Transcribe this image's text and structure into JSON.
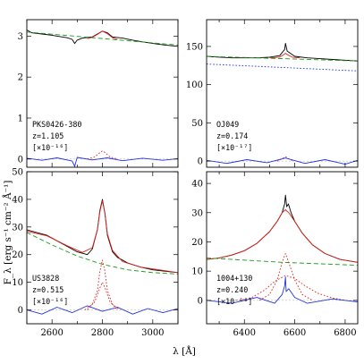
{
  "chart_data": [
    {
      "id": "pks0426",
      "type": "line",
      "object": "PKS0426-380",
      "redshift": "z=1.105",
      "scale": "[×10⁻¹⁶]",
      "xlim": [
        2500,
        3100
      ],
      "ylim": [
        -0.2,
        3.4
      ],
      "yticks": [
        0,
        1,
        2,
        3
      ],
      "ytick_labels": [
        "0",
        "1",
        "2",
        "3"
      ],
      "line_center": 2800,
      "series": [
        {
          "role": "observed",
          "color": "#000000",
          "style": "solid",
          "x": [
            2500,
            2520,
            2560,
            2600,
            2640,
            2660,
            2680,
            2690,
            2700,
            2720,
            2760,
            2780,
            2800,
            2820,
            2840,
            2880,
            2920,
            2960,
            3000,
            3050,
            3100
          ],
          "y": [
            3.15,
            3.08,
            3.05,
            3.02,
            2.98,
            2.96,
            2.92,
            2.82,
            2.9,
            2.95,
            2.98,
            3.05,
            3.12,
            3.08,
            2.98,
            2.95,
            2.9,
            2.86,
            2.82,
            2.78,
            2.75
          ]
        },
        {
          "role": "model",
          "color": "#e0201a",
          "style": "solid",
          "x": [
            2740,
            2760,
            2780,
            2800,
            2820,
            2840,
            2860
          ],
          "y": [
            2.94,
            2.97,
            3.04,
            3.12,
            3.06,
            2.96,
            2.92
          ]
        },
        {
          "role": "continuum",
          "color": "#1a9a1a",
          "style": "dashed",
          "x": [
            2500,
            3100
          ],
          "y": [
            3.1,
            2.78
          ]
        },
        {
          "role": "line-component",
          "color": "#e0201a",
          "style": "dotted",
          "x": [
            2740,
            2770,
            2790,
            2800,
            2810,
            2830,
            2860
          ],
          "y": [
            0,
            0.05,
            0.16,
            0.2,
            0.16,
            0.05,
            0
          ]
        },
        {
          "role": "residual",
          "color": "#2233dd",
          "style": "solid",
          "x": [
            2500,
            2560,
            2620,
            2680,
            2690,
            2700,
            2760,
            2820,
            2880,
            2960,
            3040,
            3100
          ],
          "y": [
            0.02,
            -0.03,
            0.03,
            -0.05,
            -0.18,
            0.04,
            -0.02,
            0.03,
            -0.04,
            0.02,
            -0.03,
            0.01
          ]
        }
      ]
    },
    {
      "id": "oj049",
      "type": "line",
      "object": "OJ049",
      "redshift": "z=0.174",
      "scale": "[×10⁻¹⁷]",
      "xlim": [
        6250,
        6850
      ],
      "ylim": [
        -8,
        185
      ],
      "yticks": [
        0,
        50,
        100,
        150
      ],
      "ytick_labels": [
        "0",
        "50",
        "100",
        "150"
      ],
      "line_center": 6563,
      "series": [
        {
          "role": "observed",
          "color": "#000000",
          "style": "solid",
          "x": [
            6250,
            6300,
            6350,
            6400,
            6450,
            6500,
            6540,
            6560,
            6563,
            6570,
            6600,
            6650,
            6700,
            6750,
            6800,
            6850
          ],
          "y": [
            137,
            136,
            135,
            135,
            135,
            136,
            138,
            146,
            154,
            144,
            137,
            135,
            134,
            133,
            132,
            131
          ]
        },
        {
          "role": "model",
          "color": "#e0201a",
          "style": "solid",
          "x": [
            6500,
            6540,
            6555,
            6563,
            6572,
            6590,
            6620
          ],
          "y": [
            135,
            136,
            139,
            141,
            139,
            136,
            135
          ]
        },
        {
          "role": "continuum",
          "color": "#1a9a1a",
          "style": "dashed",
          "x": [
            6250,
            6850
          ],
          "y": [
            137,
            131
          ]
        },
        {
          "role": "host-component",
          "color": "#2233dd",
          "style": "dotted",
          "x": [
            6250,
            6850
          ],
          "y": [
            127,
            118
          ]
        },
        {
          "role": "line-component",
          "color": "#e0201a",
          "style": "dotted",
          "x": [
            6530,
            6550,
            6563,
            6576,
            6596
          ],
          "y": [
            0,
            3,
            6,
            3,
            0
          ]
        },
        {
          "role": "residual",
          "color": "#2233dd",
          "style": "solid",
          "x": [
            6250,
            6330,
            6410,
            6490,
            6563,
            6640,
            6720,
            6800,
            6850
          ],
          "y": [
            1,
            -3,
            2,
            -2,
            4,
            -3,
            2,
            -4,
            1
          ]
        }
      ]
    },
    {
      "id": "us3828",
      "type": "line",
      "object": "US3828",
      "redshift": "z=0.515",
      "scale": "[×10⁻¹⁶]",
      "xlim": [
        2500,
        3100
      ],
      "ylim": [
        -5,
        50
      ],
      "yticks": [
        0,
        10,
        20,
        30,
        40,
        50
      ],
      "ytick_labels": [
        "0",
        "10",
        "20",
        "30",
        "40",
        "50"
      ],
      "xticks": [
        2600,
        2800,
        3000
      ],
      "xtick_labels": [
        "2600",
        "2800",
        "3000"
      ],
      "line_center": 2800,
      "series": [
        {
          "role": "observed",
          "color": "#000000",
          "style": "solid",
          "x": [
            2500,
            2540,
            2580,
            2620,
            2660,
            2700,
            2740,
            2760,
            2780,
            2790,
            2800,
            2810,
            2820,
            2840,
            2860,
            2900,
            2950,
            3000,
            3050,
            3100
          ],
          "y": [
            29,
            28,
            27,
            25,
            23,
            21,
            20,
            22,
            29,
            36,
            40,
            35,
            27,
            21,
            19,
            17,
            15.5,
            14.5,
            14,
            13.5
          ]
        },
        {
          "role": "model",
          "color": "#e0201a",
          "style": "solid",
          "x": [
            2500,
            2580,
            2660,
            2720,
            2760,
            2780,
            2790,
            2800,
            2810,
            2820,
            2840,
            2880,
            2950,
            3100
          ],
          "y": [
            28.5,
            26.8,
            23.2,
            20.8,
            22.5,
            29,
            35.5,
            39.5,
            35,
            27.5,
            21.5,
            17.5,
            15.5,
            13.5
          ]
        },
        {
          "role": "continuum",
          "color": "#1a9a1a",
          "style": "dashed",
          "x": [
            2500,
            2600,
            2700,
            2800,
            2900,
            3000,
            3100
          ],
          "y": [
            28,
            23.5,
            19.5,
            16.5,
            14.5,
            13.5,
            13
          ]
        },
        {
          "role": "line-component",
          "color": "#e0201a",
          "style": "dotted",
          "x": [
            2730,
            2760,
            2780,
            2790,
            2800,
            2810,
            2820,
            2840,
            2870
          ],
          "y": [
            0,
            2,
            7,
            14,
            18,
            14,
            7,
            2,
            0
          ]
        },
        {
          "role": "line-component",
          "color": "#e0201a",
          "style": "dotted",
          "x": [
            2740,
            2770,
            2790,
            2800,
            2810,
            2830,
            2860
          ],
          "y": [
            0,
            3,
            8,
            10,
            8,
            3,
            0
          ]
        },
        {
          "role": "residual",
          "color": "#2233dd",
          "style": "solid",
          "x": [
            2500,
            2560,
            2620,
            2680,
            2740,
            2800,
            2860,
            2920,
            2980,
            3040,
            3100
          ],
          "y": [
            0,
            -1.5,
            1,
            -1,
            1.5,
            -0.5,
            1,
            -1.5,
            0.5,
            -1,
            0.5
          ]
        }
      ]
    },
    {
      "id": "1004_130",
      "type": "line",
      "object": "1004+130",
      "redshift": "z=0.240",
      "scale": "[×10⁻¹⁶]",
      "xlim": [
        6250,
        6850
      ],
      "ylim": [
        -8,
        44
      ],
      "yticks": [
        0,
        10,
        20,
        30,
        40
      ],
      "ytick_labels": [
        "0",
        "10",
        "20",
        "30",
        "40"
      ],
      "xticks": [
        6400,
        6600,
        6800
      ],
      "xtick_labels": [
        "6400",
        "6600",
        "6800"
      ],
      "line_center": 6563,
      "series": [
        {
          "role": "observed",
          "color": "#000000",
          "style": "solid",
          "x": [
            6250,
            6300,
            6350,
            6400,
            6450,
            6500,
            6530,
            6550,
            6560,
            6563,
            6568,
            6575,
            6585,
            6600,
            6630,
            6670,
            6720,
            6780,
            6850
          ],
          "y": [
            14,
            14.5,
            15.5,
            17,
            19.5,
            23.5,
            27,
            30,
            33,
            36,
            32,
            33,
            30,
            27,
            23,
            19,
            16,
            14,
            13
          ]
        },
        {
          "role": "model",
          "color": "#e0201a",
          "style": "solid",
          "x": [
            6250,
            6300,
            6350,
            6400,
            6450,
            6500,
            6530,
            6550,
            6563,
            6576,
            6600,
            6630,
            6670,
            6720,
            6780,
            6850
          ],
          "y": [
            14,
            14.5,
            15.5,
            17,
            19.5,
            23.5,
            27,
            30,
            31,
            30,
            27,
            23,
            19,
            16,
            14,
            13
          ]
        },
        {
          "role": "continuum",
          "color": "#1a9a1a",
          "style": "dashed",
          "x": [
            6250,
            6550,
            6850
          ],
          "y": [
            14.5,
            13,
            12
          ]
        },
        {
          "role": "line-component",
          "color": "#e0201a",
          "style": "dotted",
          "x": [
            6380,
            6430,
            6480,
            6520,
            6563,
            6600,
            6640,
            6690,
            6750,
            6800
          ],
          "y": [
            0,
            1,
            3.5,
            6.5,
            8.5,
            7.5,
            5,
            2.5,
            0.8,
            0
          ]
        },
        {
          "role": "line-component",
          "color": "#e0201a",
          "style": "dotted",
          "x": [
            6460,
            6500,
            6530,
            6550,
            6563,
            6576,
            6600,
            6630,
            6670
          ],
          "y": [
            0,
            2,
            7,
            13,
            16,
            13,
            7,
            2,
            0
          ]
        },
        {
          "role": "residual",
          "color": "#2233dd",
          "style": "solid",
          "x": [
            6250,
            6350,
            6450,
            6520,
            6550,
            6560,
            6563,
            6566,
            6576,
            6600,
            6650,
            6750,
            6850
          ],
          "y": [
            0,
            -1,
            1,
            -1,
            2,
            5,
            8,
            3,
            4,
            1,
            -1,
            0.5,
            -0.5
          ]
        }
      ]
    }
  ],
  "figure": {
    "ylabel": "F_λ [erg s⁻¹ cm⁻² Å⁻¹]",
    "xlabel": "λ [Å]"
  }
}
